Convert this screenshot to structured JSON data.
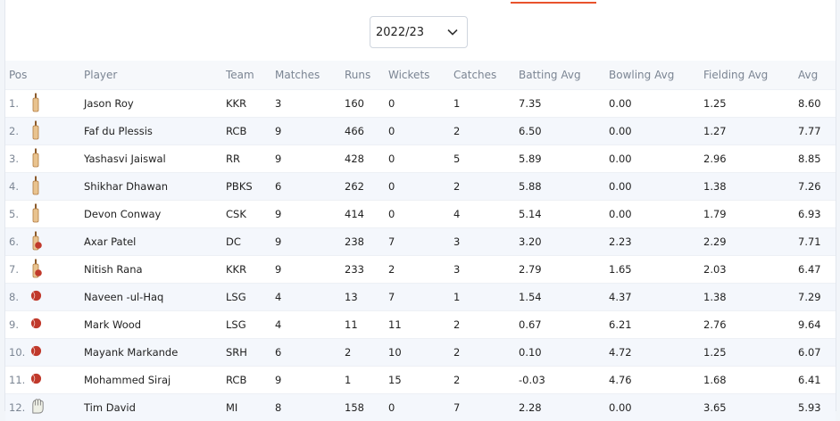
{
  "season_select": {
    "value": "2022/23"
  },
  "columns": {
    "pos": "Pos",
    "player": "Player",
    "team": "Team",
    "matches": "Matches",
    "runs": "Runs",
    "wickets": "Wickets",
    "catches": "Catches",
    "batting_avg": "Batting Avg",
    "bowling_avg": "Bowling Avg",
    "fielding_avg": "Fielding Avg",
    "avg": "Avg"
  },
  "rows": [
    {
      "pos": "1.",
      "role": "bat-icon",
      "player": "Jason Roy",
      "team": "KKR",
      "matches": "3",
      "runs": "160",
      "wickets": "0",
      "catches": "1",
      "batting_avg": "7.35",
      "bowling_avg": "0.00",
      "fielding_avg": "1.25",
      "avg": "8.60"
    },
    {
      "pos": "2.",
      "role": "bat-icon",
      "player": "Faf du Plessis",
      "team": "RCB",
      "matches": "9",
      "runs": "466",
      "wickets": "0",
      "catches": "2",
      "batting_avg": "6.50",
      "bowling_avg": "0.00",
      "fielding_avg": "1.27",
      "avg": "7.77"
    },
    {
      "pos": "3.",
      "role": "bat-icon",
      "player": "Yashasvi Jaiswal",
      "team": "RR",
      "matches": "9",
      "runs": "428",
      "wickets": "0",
      "catches": "5",
      "batting_avg": "5.89",
      "bowling_avg": "0.00",
      "fielding_avg": "2.96",
      "avg": "8.85"
    },
    {
      "pos": "4.",
      "role": "bat-icon",
      "player": "Shikhar Dhawan",
      "team": "PBKS",
      "matches": "6",
      "runs": "262",
      "wickets": "0",
      "catches": "2",
      "batting_avg": "5.88",
      "bowling_avg": "0.00",
      "fielding_avg": "1.38",
      "avg": "7.26"
    },
    {
      "pos": "5.",
      "role": "bat-icon",
      "player": "Devon Conway",
      "team": "CSK",
      "matches": "9",
      "runs": "414",
      "wickets": "0",
      "catches": "4",
      "batting_avg": "5.14",
      "bowling_avg": "0.00",
      "fielding_avg": "1.79",
      "avg": "6.93"
    },
    {
      "pos": "6.",
      "role": "allrounder-icon",
      "player": "Axar Patel",
      "team": "DC",
      "matches": "9",
      "runs": "238",
      "wickets": "7",
      "catches": "3",
      "batting_avg": "3.20",
      "bowling_avg": "2.23",
      "fielding_avg": "2.29",
      "avg": "7.71"
    },
    {
      "pos": "7.",
      "role": "allrounder-icon",
      "player": "Nitish Rana",
      "team": "KKR",
      "matches": "9",
      "runs": "233",
      "wickets": "2",
      "catches": "3",
      "batting_avg": "2.79",
      "bowling_avg": "1.65",
      "fielding_avg": "2.03",
      "avg": "6.47"
    },
    {
      "pos": "8.",
      "role": "ball-icon",
      "player": "Naveen -ul-Haq",
      "team": "LSG",
      "matches": "4",
      "runs": "13",
      "wickets": "7",
      "catches": "1",
      "batting_avg": "1.54",
      "bowling_avg": "4.37",
      "fielding_avg": "1.38",
      "avg": "7.29"
    },
    {
      "pos": "9.",
      "role": "ball-icon",
      "player": "Mark Wood",
      "team": "LSG",
      "matches": "4",
      "runs": "11",
      "wickets": "11",
      "catches": "2",
      "batting_avg": "0.67",
      "bowling_avg": "6.21",
      "fielding_avg": "2.76",
      "avg": "9.64"
    },
    {
      "pos": "10.",
      "role": "ball-icon",
      "player": "Mayank Markande",
      "team": "SRH",
      "matches": "6",
      "runs": "2",
      "wickets": "10",
      "catches": "2",
      "batting_avg": "0.10",
      "bowling_avg": "4.72",
      "fielding_avg": "1.25",
      "avg": "6.07"
    },
    {
      "pos": "11.",
      "role": "ball-icon",
      "player": "Mohammed Siraj",
      "team": "RCB",
      "matches": "9",
      "runs": "1",
      "wickets": "15",
      "catches": "2",
      "batting_avg": "-0.03",
      "bowling_avg": "4.76",
      "fielding_avg": "1.68",
      "avg": "6.41"
    },
    {
      "pos": "12.",
      "role": "glove-icon",
      "player": "Tim David",
      "team": "MI",
      "matches": "8",
      "runs": "158",
      "wickets": "0",
      "catches": "7",
      "batting_avg": "2.28",
      "bowling_avg": "0.00",
      "fielding_avg": "3.65",
      "avg": "5.93"
    }
  ],
  "colors": {
    "accent": "#e8532c",
    "ball": "#c0392b",
    "bat": "#e9c38f"
  }
}
